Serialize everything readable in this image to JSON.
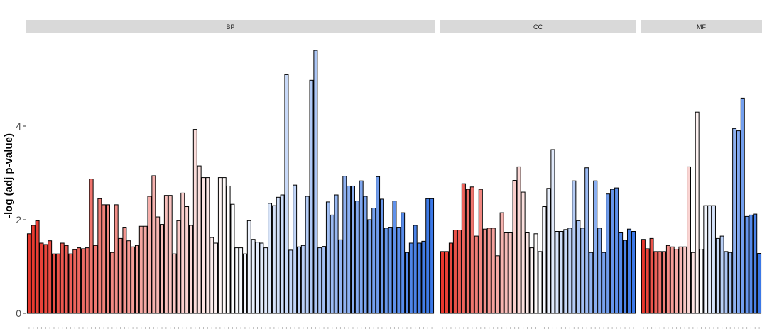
{
  "chart_data": {
    "type": "bar",
    "ylabel": "-log (adj p-value)",
    "xlabel": "",
    "ylim": [
      0,
      6.0
    ],
    "yticks": [
      0,
      2,
      4
    ],
    "ytick_labels": [
      "0",
      "2",
      "4"
    ],
    "grid": false,
    "legend": "none",
    "bar_outline_color": "#000000",
    "color_gradient": [
      "#e8362c",
      "#ffffff",
      "#3b78e7"
    ],
    "facets": [
      {
        "label": "BP",
        "values": [
          1.7,
          1.88,
          1.98,
          1.5,
          1.47,
          1.55,
          1.27,
          1.27,
          1.5,
          1.45,
          1.27,
          1.36,
          1.4,
          1.38,
          1.4,
          2.87,
          1.45,
          2.45,
          2.32,
          2.32,
          1.3,
          2.32,
          1.6,
          1.84,
          1.55,
          1.42,
          1.45,
          1.86,
          1.86,
          2.5,
          2.94,
          2.06,
          1.9,
          2.52,
          2.52,
          1.27,
          1.98,
          2.57,
          2.28,
          1.88,
          3.93,
          3.15,
          2.9,
          2.9,
          1.62,
          1.5,
          2.9,
          2.9,
          2.72,
          2.33,
          1.4,
          1.4,
          1.27,
          1.98,
          1.58,
          1.52,
          1.5,
          1.4,
          2.35,
          2.3,
          2.48,
          2.53,
          5.1,
          1.35,
          2.74,
          1.42,
          1.45,
          2.5,
          4.98,
          5.62,
          1.4,
          1.43,
          2.38,
          2.1,
          2.53,
          1.57,
          2.93,
          2.72,
          2.72,
          2.4,
          2.83,
          2.5,
          2.0,
          2.25,
          2.92,
          2.44,
          1.82,
          1.84,
          2.4,
          1.84,
          2.15,
          1.3,
          1.5,
          1.88,
          1.5,
          1.54,
          2.45,
          2.45
        ]
      },
      {
        "label": "CC",
        "values": [
          1.32,
          1.32,
          1.5,
          1.78,
          1.78,
          2.77,
          2.65,
          2.7,
          1.65,
          2.65,
          1.8,
          1.82,
          1.82,
          1.23,
          2.15,
          1.72,
          1.72,
          2.84,
          3.13,
          2.59,
          1.72,
          1.4,
          1.7,
          1.32,
          2.28,
          2.67,
          3.5,
          1.75,
          1.75,
          1.79,
          1.82,
          2.83,
          1.98,
          1.82,
          3.11,
          1.3,
          2.83,
          1.82,
          1.3,
          2.55,
          2.65,
          2.68,
          1.72,
          1.56,
          1.8,
          1.75
        ]
      },
      {
        "label": "MF",
        "values": [
          1.58,
          1.38,
          1.6,
          1.32,
          1.32,
          1.32,
          1.45,
          1.42,
          1.37,
          1.42,
          1.42,
          3.13,
          1.3,
          4.3,
          1.37,
          2.3,
          2.3,
          2.3,
          1.6,
          1.65,
          1.32,
          1.3,
          3.95,
          3.9,
          4.6,
          2.07,
          2.1,
          2.12,
          1.28
        ]
      }
    ]
  }
}
